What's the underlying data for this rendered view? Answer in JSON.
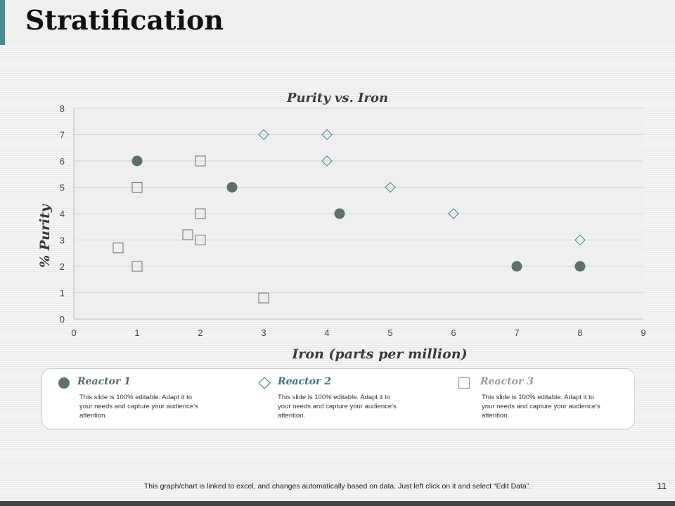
{
  "page": {
    "title": "Stratification",
    "footer": "This graph/chart is linked to excel, and changes automatically based on data. Just left click on it and select “Edit Data”.",
    "page_number": "11"
  },
  "chart_data": {
    "type": "scatter",
    "title": "Purity vs. Iron",
    "xlabel": "Iron (parts per million)",
    "ylabel": "% Purity",
    "xlim": [
      0,
      9
    ],
    "ylim": [
      0,
      8
    ],
    "xticks": [
      "0",
      "1",
      "2",
      "3",
      "4",
      "5",
      "6",
      "7",
      "8",
      "9"
    ],
    "yticks": [
      "0",
      "1",
      "2",
      "3",
      "4",
      "5",
      "6",
      "7",
      "8"
    ],
    "grid": "horizontal",
    "legend_position": "bottom",
    "series": [
      {
        "name": "Reactor 1",
        "marker": "circle",
        "color": "#5f6f6c",
        "points": [
          [
            1,
            6
          ],
          [
            2.5,
            5
          ],
          [
            4.2,
            4
          ],
          [
            7,
            2
          ],
          [
            8,
            2
          ]
        ]
      },
      {
        "name": "Reactor 2",
        "marker": "diamond",
        "color": "#4a8a9a",
        "points": [
          [
            3,
            7
          ],
          [
            4,
            7
          ],
          [
            4,
            6
          ],
          [
            5,
            5
          ],
          [
            6,
            4
          ],
          [
            8,
            3
          ]
        ]
      },
      {
        "name": "Reactor 3",
        "marker": "square",
        "color": "#7a7a7a",
        "points": [
          [
            1,
            5
          ],
          [
            2,
            6
          ],
          [
            2,
            4
          ],
          [
            1.8,
            3.2
          ],
          [
            2,
            3
          ],
          [
            0.7,
            2.7
          ],
          [
            1,
            2
          ],
          [
            3,
            0.8
          ]
        ]
      }
    ]
  },
  "legend": {
    "items": [
      {
        "name": "Reactor 1",
        "color": "#5f6f6c",
        "text_color": "#5a6a68",
        "marker": "circle",
        "description": "This slide is 100% editable.  Adapt it to your needs and capture your audience's attention."
      },
      {
        "name": "Reactor 2",
        "color": "#4a8a9a",
        "text_color": "#3d7580",
        "marker": "diamond",
        "description": "This slide is 100% editable.  Adapt it to your needs and capture your audience's attention."
      },
      {
        "name": "Reactor 3",
        "color": "#9a9a9a",
        "text_color": "#9a9a9a",
        "marker": "square",
        "description": "This slide is 100% editable.  Adapt it to your needs and capture your audience's attention."
      }
    ]
  }
}
